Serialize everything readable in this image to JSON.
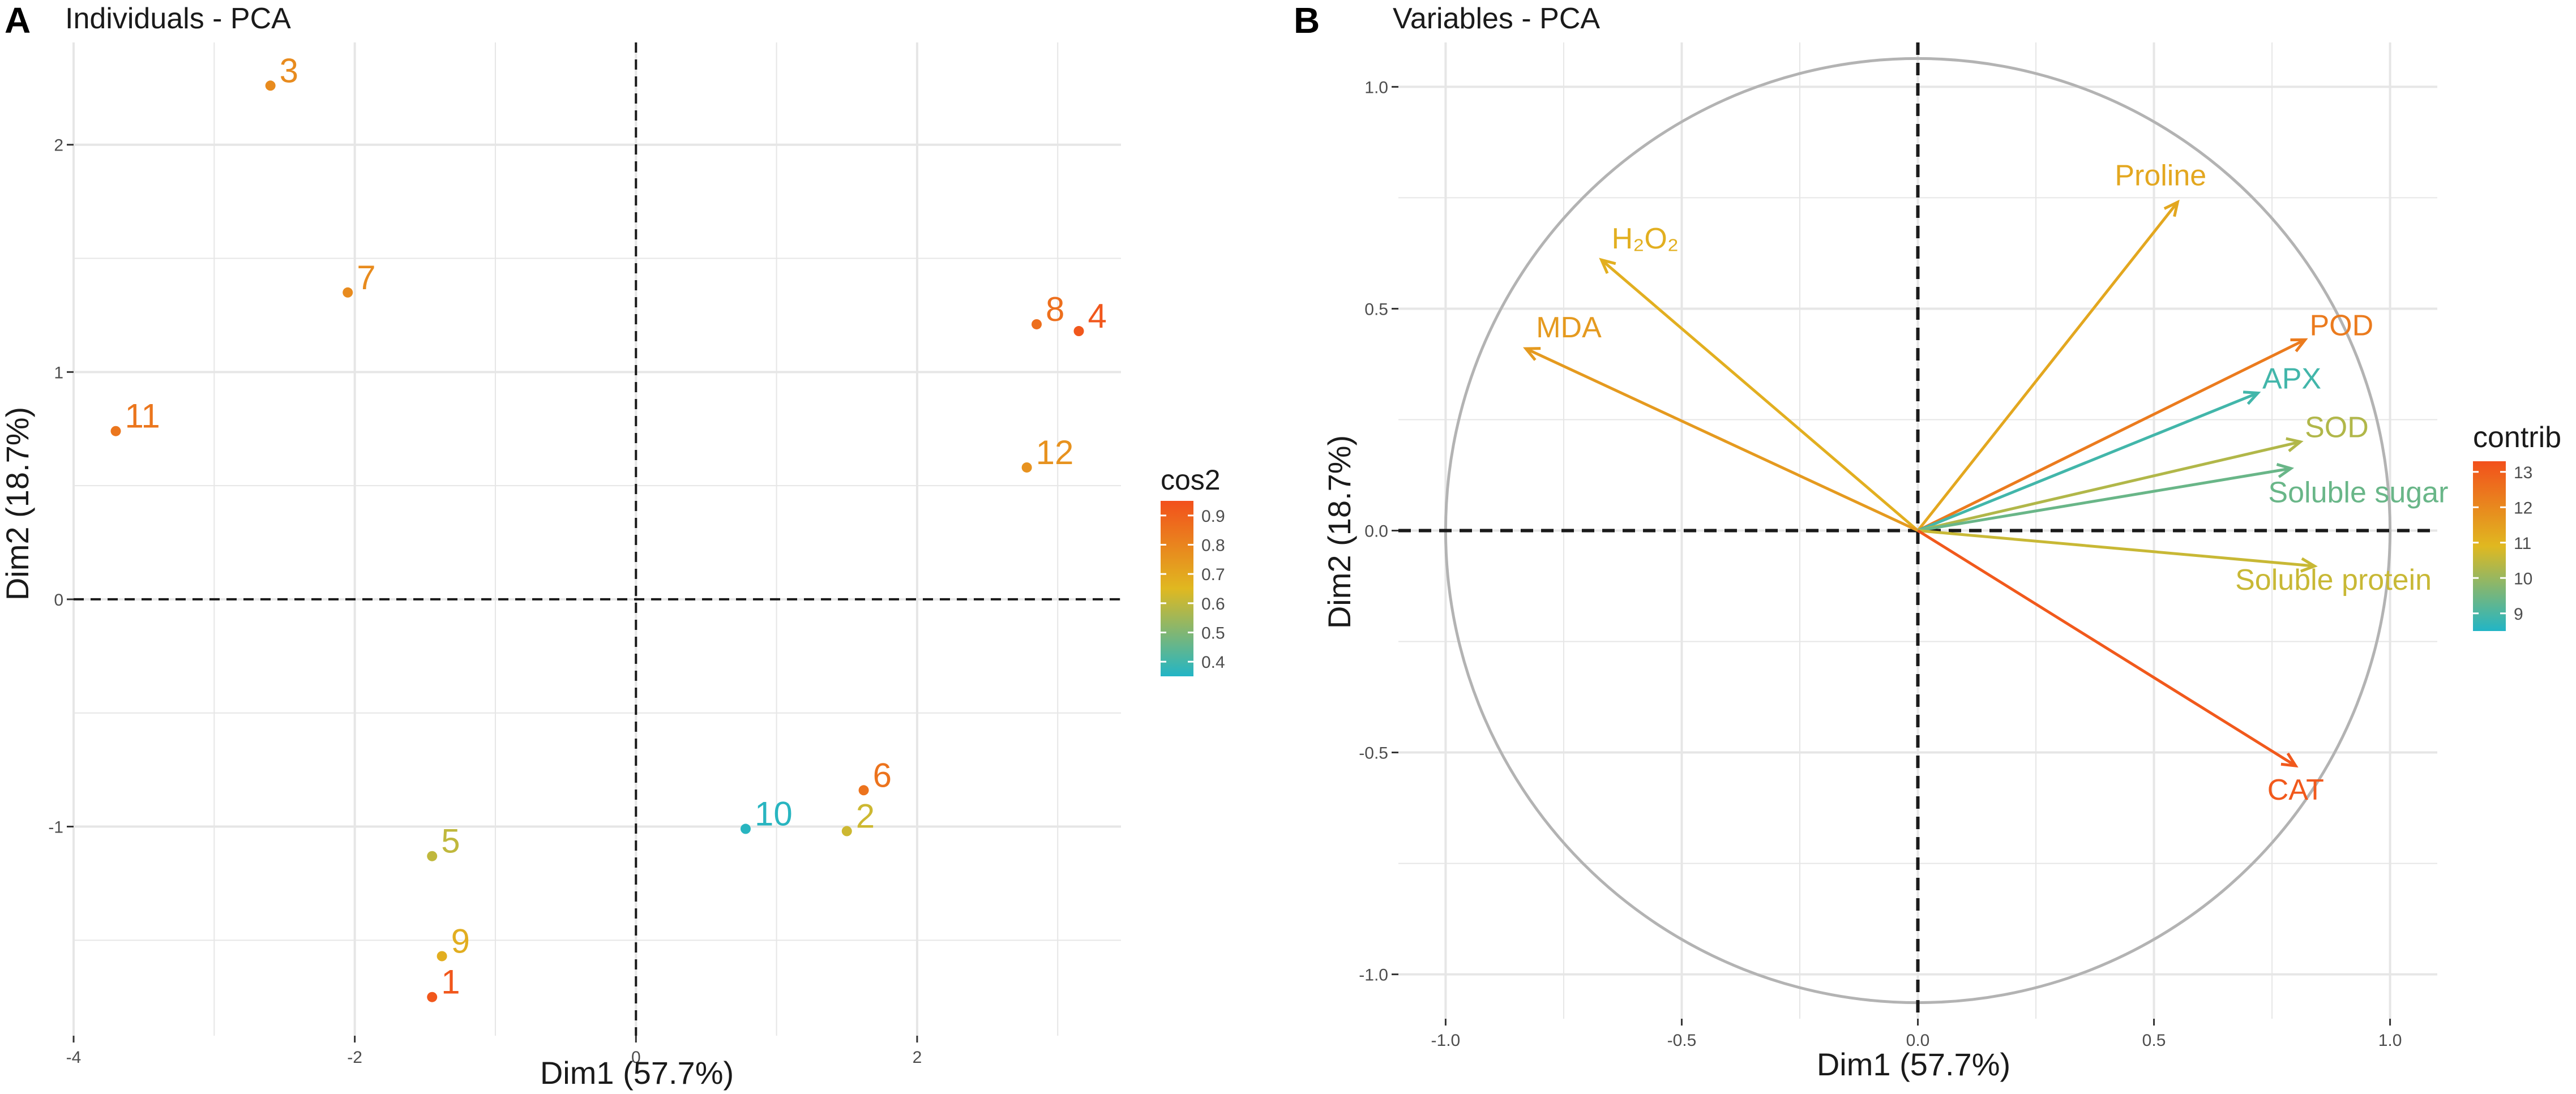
{
  "chart_data": [
    {
      "panel_letter": "A",
      "type": "scatter",
      "title": "Individuals - PCA",
      "xlabel": "Dim1 (57.7%)",
      "ylabel": "Dim2 (18.7%)",
      "xlim": [
        -4.0,
        3.45
      ],
      "ylim": [
        -1.92,
        2.45
      ],
      "xticks": [
        -4,
        -2,
        0,
        2
      ],
      "xtick_labels": [
        "-4",
        "-2",
        "0",
        "2"
      ],
      "yticks": [
        -1,
        0,
        1,
        2
      ],
      "ytick_labels": [
        "-1",
        "0",
        "1",
        "2"
      ],
      "grid": true,
      "reference_lines": {
        "x": 0,
        "y": 0,
        "style": "dashed"
      },
      "color_by": "cos2",
      "legend": {
        "title": "cos2",
        "position": "right",
        "min": 0.35,
        "max": 0.95,
        "breaks": [
          0.4,
          0.5,
          0.6,
          0.7,
          0.8,
          0.9
        ],
        "break_labels": [
          "0.4",
          "0.5",
          "0.6",
          "0.7",
          "0.8",
          "0.9"
        ]
      },
      "points": [
        {
          "label": "1",
          "x": -1.45,
          "y": -1.75,
          "cos2": 0.93
        },
        {
          "label": "2",
          "x": 1.5,
          "y": -1.02,
          "cos2": 0.62
        },
        {
          "label": "3",
          "x": -2.6,
          "y": 2.26,
          "cos2": 0.78
        },
        {
          "label": "4",
          "x": 3.15,
          "y": 1.18,
          "cos2": 0.93
        },
        {
          "label": "5",
          "x": -1.45,
          "y": -1.13,
          "cos2": 0.6
        },
        {
          "label": "6",
          "x": 1.62,
          "y": -0.84,
          "cos2": 0.85
        },
        {
          "label": "7",
          "x": -2.05,
          "y": 1.35,
          "cos2": 0.78
        },
        {
          "label": "8",
          "x": 2.85,
          "y": 1.21,
          "cos2": 0.86
        },
        {
          "label": "9",
          "x": -1.38,
          "y": -1.57,
          "cos2": 0.68
        },
        {
          "label": "10",
          "x": 0.78,
          "y": -1.01,
          "cos2": 0.36
        },
        {
          "label": "11",
          "x": -3.7,
          "y": 0.74,
          "cos2": 0.84
        },
        {
          "label": "12",
          "x": 2.78,
          "y": 0.58,
          "cos2": 0.76
        }
      ]
    },
    {
      "panel_letter": "B",
      "type": "scatter",
      "subtype": "correlation-circle",
      "title": "Variables - PCA",
      "xlabel": "Dim1 (57.7%)",
      "ylabel": "Dim2 (18.7%)",
      "xlim": [
        -1.1,
        1.1
      ],
      "ylim": [
        -1.1,
        1.1
      ],
      "xticks": [
        -1.0,
        -0.5,
        0.0,
        0.5,
        1.0
      ],
      "xtick_labels": [
        "-1.0",
        "-0.5",
        "0.0",
        "0.5",
        "1.0"
      ],
      "yticks": [
        -1.0,
        -0.5,
        0.0,
        0.5,
        1.0
      ],
      "ytick_labels": [
        "-1.0",
        "-0.5",
        "0.0",
        "0.5",
        "1.0"
      ],
      "grid": true,
      "reference_lines": {
        "x": 0,
        "y": 0,
        "style": "dashed"
      },
      "unit_circle": true,
      "color_by": "contrib",
      "legend": {
        "title": "contrib",
        "position": "right",
        "min": 8.5,
        "max": 13.3,
        "breaks": [
          9,
          10,
          11,
          12,
          13
        ],
        "break_labels": [
          "9",
          "10",
          "11",
          "12",
          "13"
        ]
      },
      "arrows": [
        {
          "label": "Proline",
          "x": 0.55,
          "y": 0.74,
          "contrib": 11.3
        },
        {
          "label": "H₂O₂",
          "x": -0.67,
          "y": 0.61,
          "contrib": 11.1
        },
        {
          "label": "MDA",
          "x": -0.83,
          "y": 0.41,
          "contrib": 11.6
        },
        {
          "label": "POD",
          "x": 0.82,
          "y": 0.43,
          "contrib": 12.3
        },
        {
          "label": "APX",
          "x": 0.72,
          "y": 0.31,
          "contrib": 8.9
        },
        {
          "label": "SOD",
          "x": 0.81,
          "y": 0.2,
          "contrib": 10.3
        },
        {
          "label": "Soluble sugar",
          "x": 0.79,
          "y": 0.14,
          "contrib": 9.4
        },
        {
          "label": "Soluble protein",
          "x": 0.84,
          "y": -0.08,
          "contrib": 10.6
        },
        {
          "label": "CAT",
          "x": 0.8,
          "y": -0.53,
          "contrib": 13.1
        }
      ]
    }
  ],
  "colors": {
    "low": "#22b5c6",
    "mid": "#e0b820",
    "high": "#f2501c",
    "grid": "#e6e6e6",
    "panel_background": "#ffffff",
    "circle": "#b3b3b3",
    "axis_text": "#4d4d4d",
    "text": "#1a1a1a"
  }
}
